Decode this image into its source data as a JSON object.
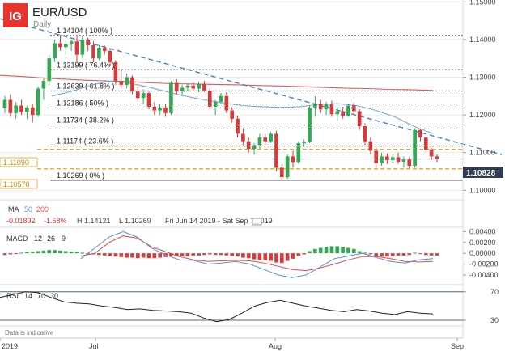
{
  "header": {
    "logo": "IG",
    "symbol": "EUR/USD",
    "timeframe": "Daily",
    "disclaimer": "Data is indicative"
  },
  "colors": {
    "bullish": "#34a853",
    "bearish": "#d63a3a",
    "ma50": "#7aa7d8",
    "ma200": "#e05a5a",
    "trendline": "#4a7fc1",
    "reference": "#f0a500",
    "macd_line": "#5b8fd6",
    "signal_line": "#e04b4b",
    "rsi_line": "#222222",
    "logo_bg": "#e8342b"
  },
  "price_badges": {
    "current": "1.10828",
    "upper_ref": "1.11090",
    "lower_ref": "1.10570"
  },
  "ma_panel": {
    "label": "MA",
    "period1": "50",
    "period2": "200",
    "change": "-0.01892",
    "change_pct": "-1.68%",
    "high": "H 1.14121",
    "low": "L 1.10269",
    "range": "Fri Jun 14 2019 - Sat Sep 7 2019"
  },
  "macd_panel": {
    "label": "MACD",
    "p1": "12",
    "p2": "26",
    "p3": "9"
  },
  "rsi_panel": {
    "label": "RSI",
    "p1": "14",
    "p2": "70",
    "p3": "30"
  },
  "chart_data": {
    "type": "candlestick",
    "x_labels": [
      "2019",
      "Jul",
      "Aug",
      "Sep"
    ],
    "price_axis": {
      "ticks": [
        "1.15000",
        "1.14000",
        "1.13000",
        "1.12000",
        "1.11000",
        "1.10000"
      ],
      "ylim": [
        1.0975,
        1.1505
      ]
    },
    "fib_levels": [
      {
        "value": 1.14104,
        "label": "1.14104 ( 100% )"
      },
      {
        "value": 1.13199,
        "label": "1.13199 ( 76.4% )"
      },
      {
        "value": 1.12639,
        "label": "1.12639 ( 61.8% )"
      },
      {
        "value": 1.12186,
        "label": "1.12186 ( 50% )"
      },
      {
        "value": 1.11734,
        "label": "1.11734 ( 38.2% )"
      },
      {
        "value": 1.11174,
        "label": "1.11174 ( 23.6% )"
      },
      {
        "value": 1.10269,
        "label": "1.10269 ( 0% )"
      }
    ],
    "reference_levels": [
      1.1109,
      1.1057
    ],
    "current_price": 1.10828,
    "trendline": {
      "from": 1.1455,
      "to": 1.1095
    },
    "candles": [
      [
        1.1218,
        1.125,
        1.1205,
        1.124
      ],
      [
        1.124,
        1.1255,
        1.1195,
        1.1205
      ],
      [
        1.1205,
        1.1235,
        1.119,
        1.1225
      ],
      [
        1.1225,
        1.124,
        1.12,
        1.1208
      ],
      [
        1.1208,
        1.1225,
        1.119,
        1.122
      ],
      [
        1.122,
        1.123,
        1.118,
        1.12
      ],
      [
        1.12,
        1.1275,
        1.1195,
        1.127
      ],
      [
        1.127,
        1.13,
        1.124,
        1.129
      ],
      [
        1.129,
        1.136,
        1.128,
        1.135
      ],
      [
        1.135,
        1.14,
        1.134,
        1.139
      ],
      [
        1.139,
        1.141,
        1.137,
        1.138
      ],
      [
        1.138,
        1.1395,
        1.136,
        1.1388
      ],
      [
        1.1388,
        1.14,
        1.137,
        1.1395
      ],
      [
        1.1395,
        1.1412,
        1.134,
        1.136
      ],
      [
        1.136,
        1.141,
        1.135,
        1.14
      ],
      [
        1.14,
        1.1405,
        1.137,
        1.1385
      ],
      [
        1.1385,
        1.1395,
        1.134,
        1.135
      ],
      [
        1.135,
        1.1385,
        1.1345,
        1.1378
      ],
      [
        1.1378,
        1.1385,
        1.136,
        1.137
      ],
      [
        1.137,
        1.1375,
        1.133,
        1.134
      ],
      [
        1.134,
        1.1345,
        1.128,
        1.129
      ],
      [
        1.129,
        1.132,
        1.127,
        1.128
      ],
      [
        1.128,
        1.131,
        1.127,
        1.13
      ],
      [
        1.13,
        1.1305,
        1.1255,
        1.1262
      ],
      [
        1.1262,
        1.1275,
        1.1235,
        1.1245
      ],
      [
        1.1245,
        1.1268,
        1.123,
        1.1258
      ],
      [
        1.1258,
        1.1262,
        1.1215,
        1.1222
      ],
      [
        1.1222,
        1.1235,
        1.12,
        1.1212
      ],
      [
        1.1212,
        1.123,
        1.12,
        1.122
      ],
      [
        1.122,
        1.123,
        1.1195,
        1.1205
      ],
      [
        1.1205,
        1.129,
        1.12,
        1.1285
      ],
      [
        1.1285,
        1.1295,
        1.1255,
        1.1262
      ],
      [
        1.1262,
        1.128,
        1.125,
        1.1272
      ],
      [
        1.1272,
        1.1282,
        1.1262,
        1.1278
      ],
      [
        1.1278,
        1.1285,
        1.1265,
        1.127
      ],
      [
        1.127,
        1.1288,
        1.126,
        1.1282
      ],
      [
        1.1282,
        1.129,
        1.126,
        1.1265
      ],
      [
        1.1265,
        1.1272,
        1.1215,
        1.1222
      ],
      [
        1.1222,
        1.124,
        1.12,
        1.1235
      ],
      [
        1.1235,
        1.1258,
        1.1228,
        1.125
      ],
      [
        1.125,
        1.126,
        1.1205,
        1.1212
      ],
      [
        1.1212,
        1.122,
        1.118,
        1.119
      ],
      [
        1.119,
        1.1198,
        1.114,
        1.115
      ],
      [
        1.115,
        1.1165,
        1.112,
        1.113
      ],
      [
        1.113,
        1.114,
        1.11,
        1.111
      ],
      [
        1.111,
        1.1125,
        1.1095,
        1.112
      ],
      [
        1.112,
        1.115,
        1.111,
        1.114
      ],
      [
        1.114,
        1.115,
        1.112,
        1.113
      ],
      [
        1.113,
        1.1155,
        1.1125,
        1.115
      ],
      [
        1.115,
        1.1158,
        1.105,
        1.106
      ],
      [
        1.106,
        1.107,
        1.1027,
        1.1035
      ],
      [
        1.1035,
        1.1095,
        1.103,
        1.109
      ],
      [
        1.109,
        1.1105,
        1.106,
        1.1075
      ],
      [
        1.1075,
        1.113,
        1.107,
        1.1125
      ],
      [
        1.1125,
        1.1135,
        1.1115,
        1.1128
      ],
      [
        1.1128,
        1.1225,
        1.1125,
        1.122
      ],
      [
        1.122,
        1.125,
        1.1195,
        1.123
      ],
      [
        1.123,
        1.124,
        1.1205,
        1.1215
      ],
      [
        1.1215,
        1.1235,
        1.12,
        1.1228
      ],
      [
        1.1228,
        1.1238,
        1.1195,
        1.1202
      ],
      [
        1.1202,
        1.122,
        1.1185,
        1.121
      ],
      [
        1.121,
        1.1222,
        1.119,
        1.1198
      ],
      [
        1.1198,
        1.123,
        1.1195,
        1.1225
      ],
      [
        1.1225,
        1.1235,
        1.12,
        1.121
      ],
      [
        1.121,
        1.1215,
        1.116,
        1.117
      ],
      [
        1.117,
        1.1178,
        1.112,
        1.113
      ],
      [
        1.113,
        1.114,
        1.1095,
        1.1105
      ],
      [
        1.1105,
        1.1112,
        1.106,
        1.1072
      ],
      [
        1.1072,
        1.11,
        1.1065,
        1.109
      ],
      [
        1.109,
        1.1098,
        1.107,
        1.108
      ],
      [
        1.108,
        1.1095,
        1.1072,
        1.1088
      ],
      [
        1.1088,
        1.11,
        1.107,
        1.1076
      ],
      [
        1.1076,
        1.109,
        1.106,
        1.1082
      ],
      [
        1.1082,
        1.1088,
        1.1058,
        1.1065
      ],
      [
        1.1065,
        1.1165,
        1.106,
        1.116
      ],
      [
        1.116,
        1.1164,
        1.113,
        1.114
      ],
      [
        1.114,
        1.1145,
        1.11,
        1.1108
      ],
      [
        1.1108,
        1.1112,
        1.108,
        1.109
      ],
      [
        1.109,
        1.1095,
        1.1075,
        1.1083
      ]
    ],
    "ma50": [
      1.125,
      1.1262,
      1.1278,
      1.129,
      1.1285,
      1.1275,
      1.1262,
      1.125,
      1.124,
      1.1232,
      1.1225,
      1.1222,
      1.122,
      1.1222,
      1.1228,
      1.123,
      1.1225,
      1.1212,
      1.1195,
      1.117,
      1.115
    ],
    "ma200": [
      1.1305,
      1.1302,
      1.1298,
      1.1295,
      1.1292,
      1.129,
      1.1288,
      1.1285,
      1.1283,
      1.1282,
      1.1281,
      1.128,
      1.1278,
      1.1277,
      1.1275,
      1.1273,
      1.1271,
      1.127,
      1.1268,
      1.1267,
      1.1265
    ],
    "macd_axis": {
      "ticks": [
        "0.00400",
        "0.00200",
        "0.00000",
        "-0.00200",
        "-0.00400"
      ],
      "ylim": [
        -0.0058,
        0.0048
      ]
    },
    "macd_histogram": [
      -0.0003,
      -0.0002,
      -0.0001,
      0.0001,
      0.0002,
      0.0003,
      0.0004,
      0.0005,
      0.0006,
      0.0006,
      0.0005,
      0.0004,
      0.0003,
      0.0002,
      0.0001,
      -0.0001,
      -0.0002,
      -0.0003,
      -0.0004,
      -0.0005,
      -0.0006,
      -0.0007,
      -0.0008,
      -0.0008,
      -0.0009,
      -0.0008,
      -0.0009,
      -0.0009,
      -0.0008,
      -0.0007,
      -0.0006,
      -0.0006,
      -0.0005,
      -0.0006,
      -0.0004,
      -0.0004,
      -0.0003,
      -0.0002,
      -0.0003,
      -0.0003,
      -0.0004,
      -0.0005,
      -0.0006,
      -0.0008,
      -0.0009,
      -0.0011,
      -0.0012,
      -0.0013,
      -0.0014,
      -0.0017,
      -0.0018,
      -0.0014,
      -0.001,
      -0.0005,
      -0.0002,
      0.0004,
      0.0008,
      0.001,
      0.0012,
      0.0013,
      0.0013,
      0.0012,
      0.001,
      0.0008,
      0.0004,
      0.0001,
      -0.0002,
      -0.0005,
      -0.0006,
      -0.0006,
      -0.0005,
      -0.0004,
      -0.0004,
      -0.0003,
      0.0001,
      -0.0001,
      -0.0003,
      -0.0004,
      -0.0004
    ],
    "macd_line": [
      -0.001,
      0.001,
      0.003,
      0.004,
      0.003,
      0.001,
      -0.0003,
      -0.0012,
      -0.0013,
      -0.002,
      -0.0018,
      -0.0015,
      -0.002,
      -0.003,
      -0.004,
      -0.0045,
      -0.004,
      -0.0025,
      -0.001,
      -0.0005,
      0.0,
      -0.0008,
      -0.0015,
      -0.0018,
      -0.0012,
      -0.001
    ],
    "signal_line": [
      -0.0005,
      0.0,
      0.002,
      0.0032,
      0.0028,
      0.0012,
      0.0003,
      -0.0006,
      -0.0012,
      -0.0015,
      -0.0014,
      -0.0013,
      -0.0014,
      -0.0018,
      -0.0024,
      -0.003,
      -0.0032,
      -0.0027,
      -0.002,
      -0.0012,
      -0.0006,
      -0.0006,
      -0.001,
      -0.0015,
      -0.0016,
      -0.0015
    ],
    "rsi_axis": {
      "ticks": [
        "70",
        "30"
      ],
      "ylim": [
        22,
        80
      ]
    },
    "rsi": [
      62,
      66,
      70,
      69,
      62,
      56,
      54,
      53,
      50,
      48,
      45,
      46,
      44,
      43,
      42,
      40,
      33,
      28,
      31,
      40,
      50,
      55,
      58,
      54,
      50,
      47,
      44,
      42,
      45,
      43,
      40,
      38,
      42,
      40,
      39
    ]
  }
}
